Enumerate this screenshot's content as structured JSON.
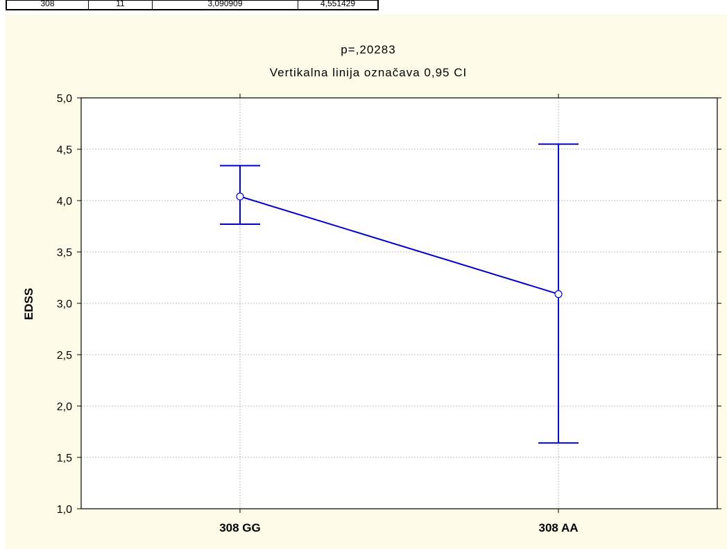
{
  "table_strip": {
    "cells": [
      "308",
      "11",
      "3,090909",
      "4,551429"
    ]
  },
  "chart_data": {
    "type": "line",
    "title": "p=,20283",
    "subtitle": "Vertikalna linija označava 0,95 CI",
    "xlabel": "",
    "ylabel": "EDSS",
    "categories": [
      "308 GG",
      "308 AA"
    ],
    "series": [
      {
        "values": [
          4.04,
          3.09
        ],
        "ci_lower": [
          3.77,
          1.64
        ],
        "ci_upper": [
          4.34,
          4.55
        ]
      }
    ],
    "ylim": [
      1.0,
      5.0
    ],
    "yticks": [
      "1,0",
      "1,5",
      "2,0",
      "2,5",
      "3,0",
      "3,5",
      "4,0",
      "4,5",
      "5,0"
    ],
    "grid": true,
    "line_color": "#0000cc",
    "background": "#fefce8"
  }
}
